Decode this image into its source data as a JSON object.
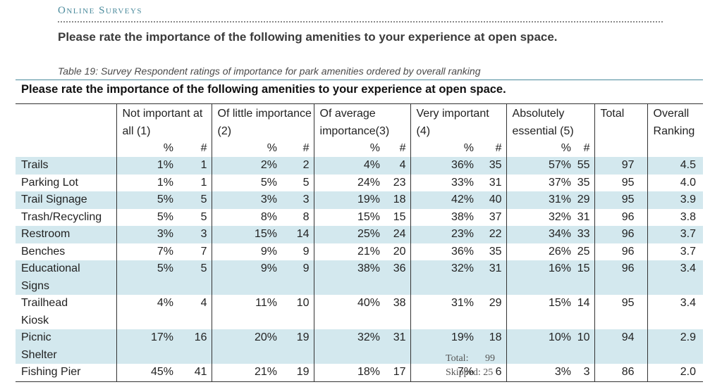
{
  "header": {
    "section_label": "Online Surveys",
    "question": "Please rate the importance of the following amenities to your experience at open space."
  },
  "table": {
    "caption": "Table 19: Survey Respondent ratings of importance for park amenities ordered by overall ranking",
    "title": "Please rate the importance of the following amenities to your experience at open space.",
    "columns": {
      "not_important": "Not important at all (1)",
      "little": "Of little importance (2)",
      "average": "Of average importance(3)",
      "very": "Very important (4)",
      "essential": "Absolutely essential (5)",
      "total": "Total",
      "ranking": "Overall Ranking"
    },
    "pct_symbol": "%",
    "num_symbol": "#",
    "rows": [
      {
        "amenity": "Trails",
        "p1": "1%",
        "n1": "1",
        "p2": "2%",
        "n2": "2",
        "p3": "4%",
        "n3": "4",
        "p4": "36%",
        "n4": "35",
        "p5": "57%",
        "n5": "55",
        "total": "97",
        "rank": "4.5"
      },
      {
        "amenity": "Parking Lot",
        "p1": "1%",
        "n1": "1",
        "p2": "5%",
        "n2": "5",
        "p3": "24%",
        "n3": "23",
        "p4": "33%",
        "n4": "31",
        "p5": "37%",
        "n5": "35",
        "total": "95",
        "rank": "4.0"
      },
      {
        "amenity": "Trail Signage",
        "p1": "5%",
        "n1": "5",
        "p2": "3%",
        "n2": "3",
        "p3": "19%",
        "n3": "18",
        "p4": "42%",
        "n4": "40",
        "p5": "31%",
        "n5": "29",
        "total": "95",
        "rank": "3.9"
      },
      {
        "amenity": "Trash/Recycling",
        "p1": "5%",
        "n1": "5",
        "p2": "8%",
        "n2": "8",
        "p3": "15%",
        "n3": "15",
        "p4": "38%",
        "n4": "37",
        "p5": "32%",
        "n5": "31",
        "total": "96",
        "rank": "3.8"
      },
      {
        "amenity": "Restroom",
        "p1": "3%",
        "n1": "3",
        "p2": "15%",
        "n2": "14",
        "p3": "25%",
        "n3": "24",
        "p4": "23%",
        "n4": "22",
        "p5": "34%",
        "n5": "33",
        "total": "96",
        "rank": "3.7"
      },
      {
        "amenity": "Benches",
        "p1": "7%",
        "n1": "7",
        "p2": "9%",
        "n2": "9",
        "p3": "21%",
        "n3": "20",
        "p4": "36%",
        "n4": "35",
        "p5": "26%",
        "n5": "25",
        "total": "96",
        "rank": "3.7"
      },
      {
        "amenity": "Educational Signs",
        "p1": "5%",
        "n1": "5",
        "p2": "9%",
        "n2": "9",
        "p3": "38%",
        "n3": "36",
        "p4": "32%",
        "n4": "31",
        "p5": "16%",
        "n5": "15",
        "total": "96",
        "rank": "3.4"
      },
      {
        "amenity": "Trailhead Kiosk",
        "p1": "4%",
        "n1": "4",
        "p2": "11%",
        "n2": "10",
        "p3": "40%",
        "n3": "38",
        "p4": "31%",
        "n4": "29",
        "p5": "15%",
        "n5": "14",
        "total": "95",
        "rank": "3.4"
      },
      {
        "amenity": "Picnic Shelter",
        "p1": "17%",
        "n1": "16",
        "p2": "20%",
        "n2": "19",
        "p3": "32%",
        "n3": "31",
        "p4": "19%",
        "n4": "18",
        "p5": "10%",
        "n5": "10",
        "total": "94",
        "rank": "2.9"
      },
      {
        "amenity": "Fishing Pier",
        "p1": "45%",
        "n1": "41",
        "p2": "21%",
        "n2": "19",
        "p3": "18%",
        "n3": "17",
        "p4": "7%",
        "n4": "6",
        "p5": "3%",
        "n5": "3",
        "total": "86",
        "rank": "2.0"
      }
    ]
  },
  "footer": {
    "total_label": "Total:",
    "total_value": "99",
    "skipped_text": "Skipped: 25"
  },
  "colors": {
    "accent": "#4a8a9c",
    "row_band": "#d3e8ee"
  }
}
